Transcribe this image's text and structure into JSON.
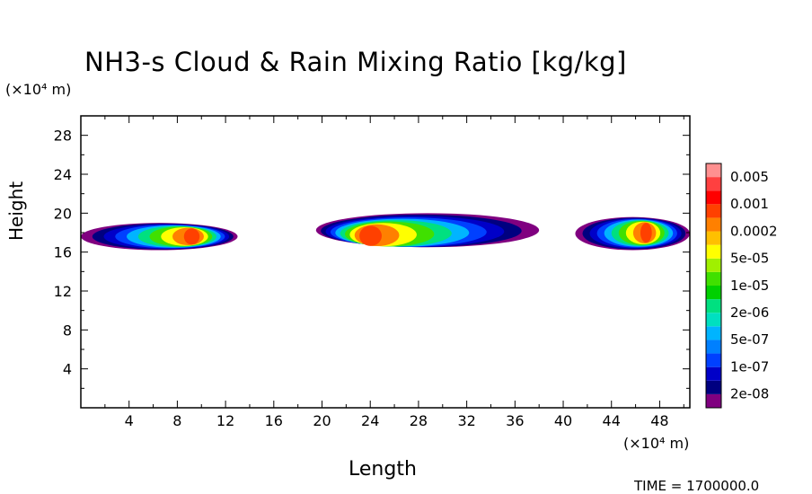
{
  "title": "NH3-s Cloud & Rain Mixing Ratio [kg/kg]",
  "y_unit": "(×10⁴ m)",
  "x_unit": "(×10⁴ m)",
  "time_label": "TIME = 1700000.0",
  "chart_data": {
    "type": "heatmap",
    "title": "NH3-s Cloud & Rain Mixing Ratio [kg/kg]",
    "xlabel": "Length",
    "ylabel": "Height",
    "x_unit": "(×10⁴ m)",
    "y_unit": "(×10⁴ m)",
    "xlim": [
      0,
      50.5
    ],
    "ylim": [
      0,
      30
    ],
    "xticks": [
      4,
      8,
      12,
      16,
      20,
      24,
      28,
      32,
      36,
      40,
      44,
      48
    ],
    "yticks": [
      4,
      8,
      12,
      16,
      20,
      24,
      28
    ],
    "colorbar": {
      "labels": [
        "0.005",
        "0.001",
        "0.0002",
        "5e-05",
        "1e-05",
        "2e-06",
        "5e-07",
        "1e-07",
        "2e-08"
      ],
      "colors": [
        "#800080",
        "#000080",
        "#0000c8",
        "#0040ff",
        "#0080ff",
        "#00b4ff",
        "#00e0c0",
        "#00e080",
        "#00d000",
        "#40e000",
        "#a0f000",
        "#ffff00",
        "#ffc000",
        "#ff8000",
        "#ff4000",
        "#ff0000",
        "#ff4040",
        "#ff9090"
      ]
    },
    "cloud_regions": [
      {
        "x_range": [
          0,
          13
        ],
        "y_range": [
          16.2,
          19.0
        ],
        "peak_x": 9.5,
        "peak_y": 17.6,
        "peak_level": "0.0002"
      },
      {
        "x_range": [
          19.5,
          38
        ],
        "y_range": [
          16.5,
          20.0
        ],
        "peak_x": 23.5,
        "peak_y": 17.6,
        "peak_level": "0.0002"
      },
      {
        "x_range": [
          41,
          50.5
        ],
        "y_range": [
          16.2,
          19.6
        ],
        "peak_x": 47,
        "peak_y": 18.0,
        "peak_level": "0.0002"
      }
    ]
  }
}
